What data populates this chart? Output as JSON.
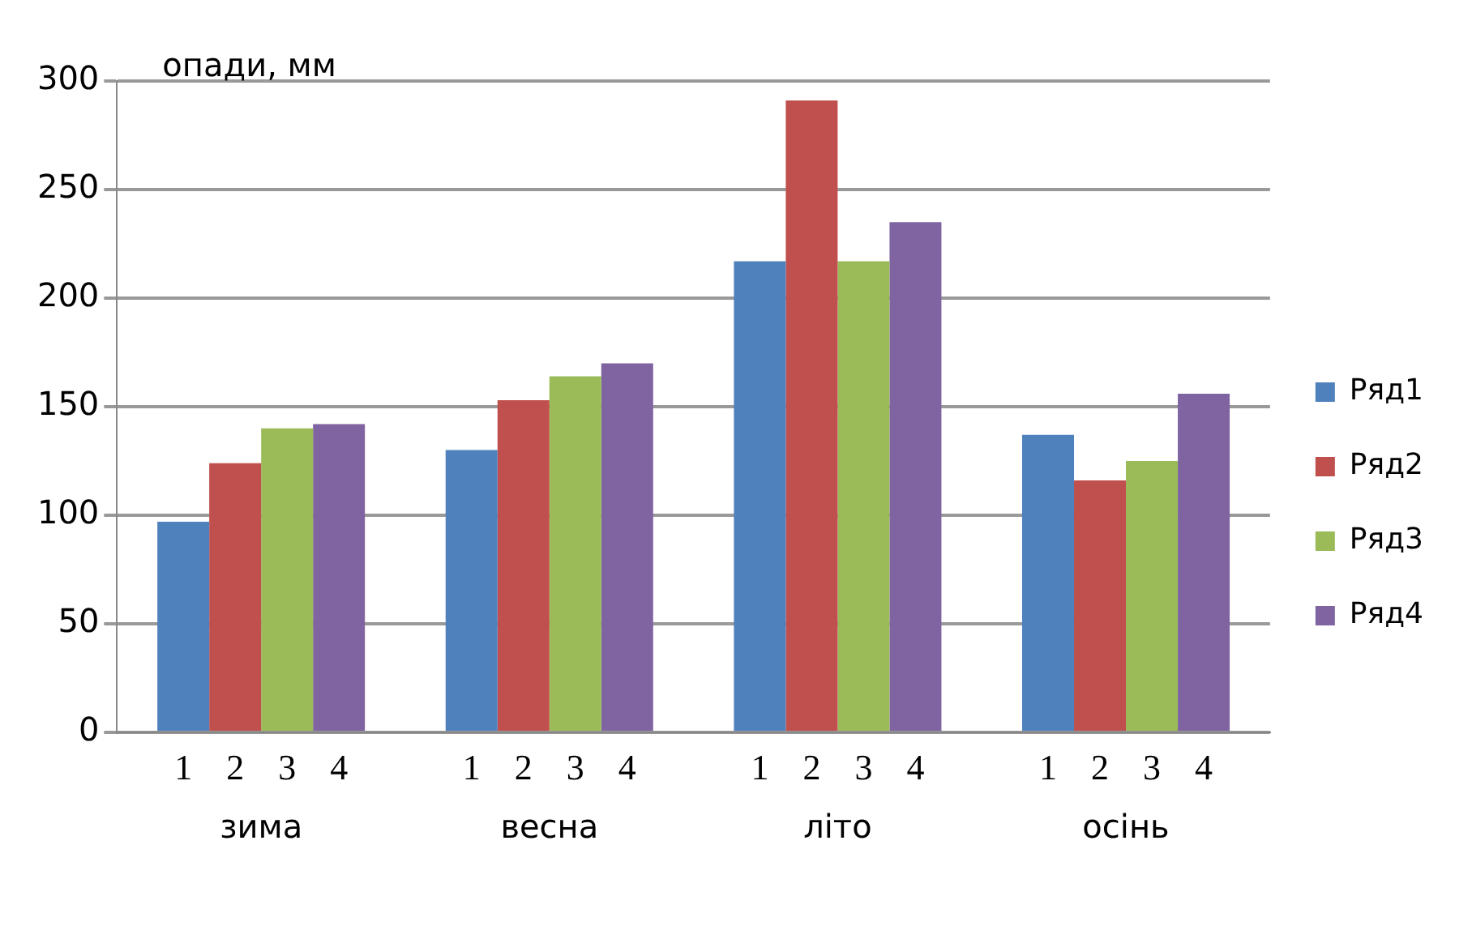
{
  "chart_data": {
    "type": "bar",
    "ylabel": "опади, мм",
    "categories": [
      "зима",
      "весна",
      "літо",
      "осінь"
    ],
    "series": [
      {
        "name": "Ряд1",
        "color": "#4f81bd",
        "values": [
          97,
          130,
          217,
          137
        ]
      },
      {
        "name": "Ряд2",
        "color": "#c0504d",
        "values": [
          124,
          153,
          291,
          116
        ]
      },
      {
        "name": "Ряд3",
        "color": "#9bbb59",
        "values": [
          140,
          164,
          217,
          125
        ]
      },
      {
        "name": "Ряд4",
        "color": "#8064a2",
        "values": [
          142,
          170,
          235,
          156
        ]
      }
    ],
    "ylim": [
      0,
      300
    ],
    "yticks": [
      0,
      50,
      100,
      150,
      200,
      250,
      300
    ],
    "grid": "y",
    "legend": "right",
    "annotations": [
      "1",
      "2",
      "3",
      "4",
      "1",
      "2",
      "3",
      "4",
      "1",
      "2",
      "3",
      "4",
      "1",
      "2",
      "3",
      "4"
    ]
  }
}
